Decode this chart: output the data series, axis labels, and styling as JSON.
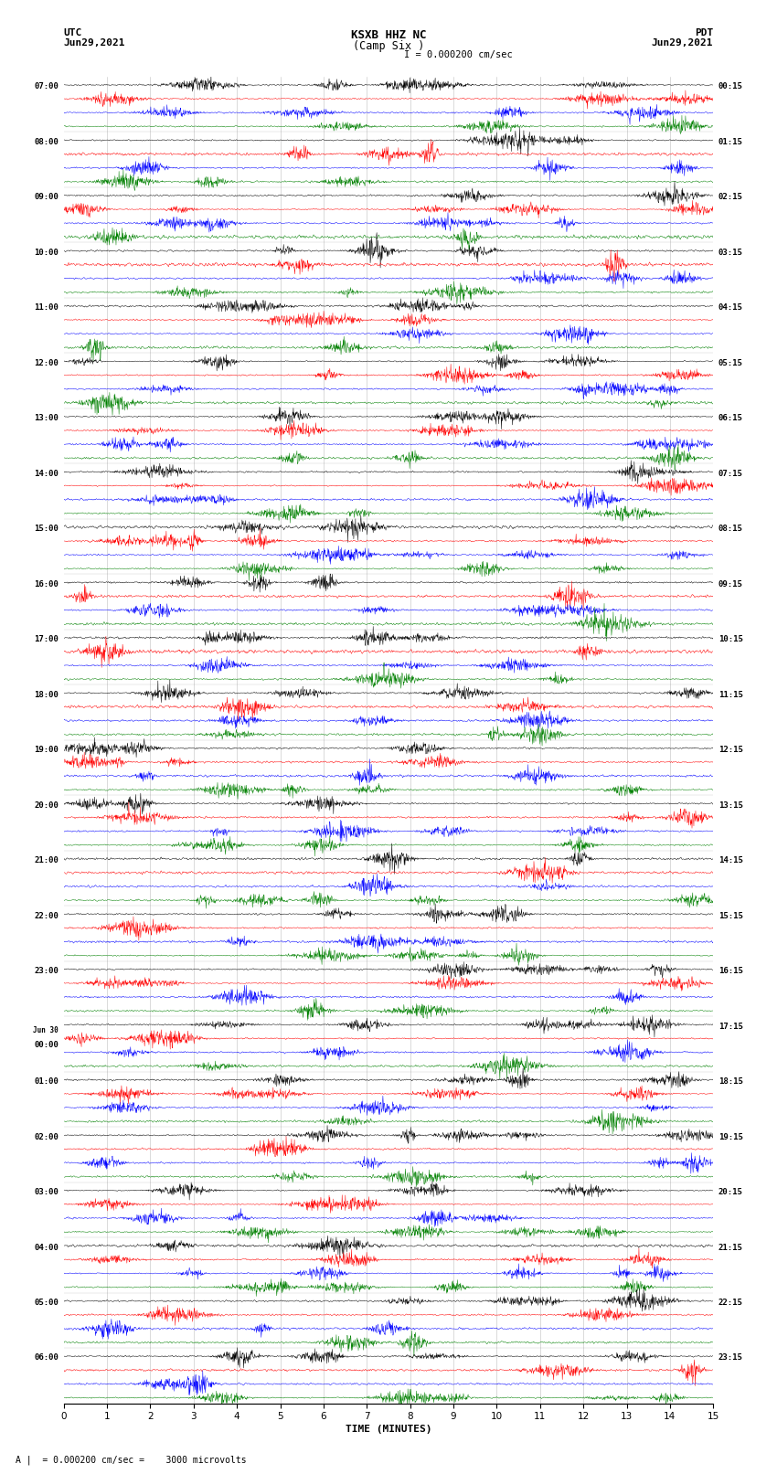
{
  "title_line1": "KSXB HHZ NC",
  "title_line2": "(Camp Six )",
  "left_header_line1": "UTC",
  "left_header_line2": "Jun29,2021",
  "right_header_line1": "PDT",
  "right_header_line2": "Jun29,2021",
  "scale_label": "I = 0.000200 cm/sec",
  "bottom_label": "A |  = 0.000200 cm/sec =    3000 microvolts",
  "xlabel": "TIME (MINUTES)",
  "xmin": 0,
  "xmax": 15,
  "xticks": [
    0,
    1,
    2,
    3,
    4,
    5,
    6,
    7,
    8,
    9,
    10,
    11,
    12,
    13,
    14,
    15
  ],
  "colors": [
    "black",
    "red",
    "blue",
    "green"
  ],
  "bg_color": "white",
  "rows": [
    {
      "left_label": "07:00",
      "right_label": "00:15"
    },
    {
      "left_label": "08:00",
      "right_label": "01:15"
    },
    {
      "left_label": "09:00",
      "right_label": "02:15"
    },
    {
      "left_label": "10:00",
      "right_label": "03:15"
    },
    {
      "left_label": "11:00",
      "right_label": "04:15"
    },
    {
      "left_label": "12:00",
      "right_label": "05:15"
    },
    {
      "left_label": "13:00",
      "right_label": "06:15"
    },
    {
      "left_label": "14:00",
      "right_label": "07:15"
    },
    {
      "left_label": "15:00",
      "right_label": "08:15"
    },
    {
      "left_label": "16:00",
      "right_label": "09:15"
    },
    {
      "left_label": "17:00",
      "right_label": "10:15"
    },
    {
      "left_label": "18:00",
      "right_label": "11:15"
    },
    {
      "left_label": "19:00",
      "right_label": "12:15"
    },
    {
      "left_label": "20:00",
      "right_label": "13:15"
    },
    {
      "left_label": "21:00",
      "right_label": "14:15"
    },
    {
      "left_label": "22:00",
      "right_label": "15:15"
    },
    {
      "left_label": "23:00",
      "right_label": "16:15"
    },
    {
      "left_label": "Jun 30\n00:00",
      "right_label": "17:15"
    },
    {
      "left_label": "01:00",
      "right_label": "18:15"
    },
    {
      "left_label": "02:00",
      "right_label": "19:15"
    },
    {
      "left_label": "03:00",
      "right_label": "20:15"
    },
    {
      "left_label": "04:00",
      "right_label": "21:15"
    },
    {
      "left_label": "05:00",
      "right_label": "22:15"
    },
    {
      "left_label": "06:00",
      "right_label": "23:15"
    }
  ]
}
